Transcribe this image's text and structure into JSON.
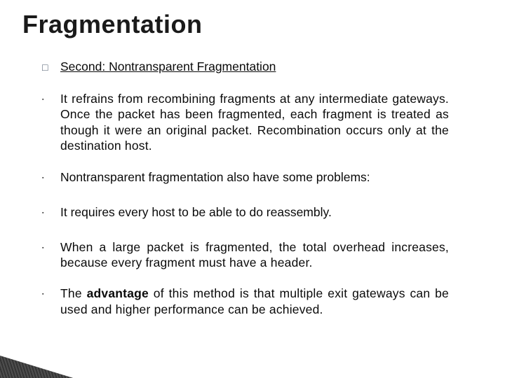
{
  "title": "Fragmentation",
  "heading": "Second: Nontransparent Fragmentation",
  "bullets": [
    "It refrains from recombining fragments at any intermediate gateways. Once the packet has been fragmented, each fragment is treated as though it were an original packet. Recombination occurs only at the destination host.",
    "Nontransparent fragmentation also have some problems:",
    "It requires every host to be able to do reassembly.",
    "When a large packet is fragmented, the total overhead increases, because every fragment must have a header."
  ],
  "advantage_prefix": "The ",
  "advantage_word": "advantage",
  "advantage_suffix": " of this method is that multiple exit gateways can be used and higher performance can be achieved.",
  "colors": {
    "title": "#1a1a1a",
    "text": "#0a0a0a",
    "background": "#ffffff",
    "triangle_dark": "#1e1e1e",
    "triangle_light": "#3a3a3a"
  },
  "fontsizes": {
    "title_pt": 28,
    "body_pt": 14
  }
}
